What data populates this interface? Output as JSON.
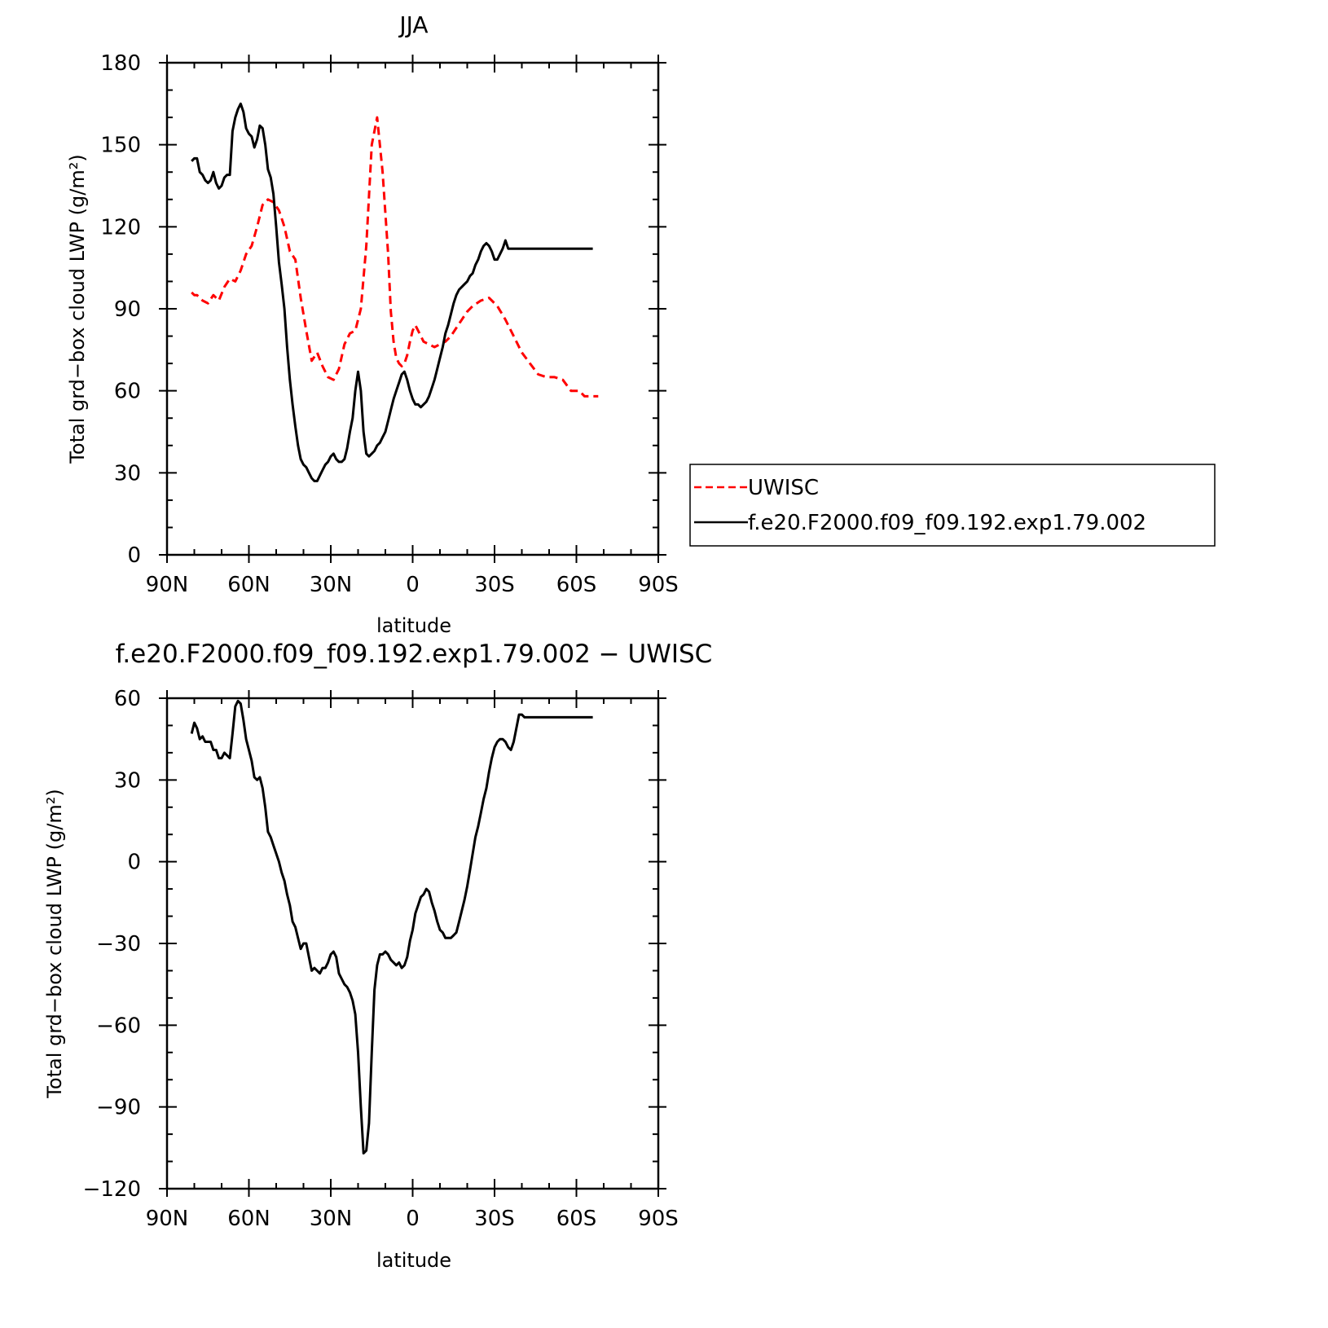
{
  "figure": {
    "top_title": "JJA",
    "bottom_title": "f.e20.F2000.f09_f09.192.exp1.79.002  −  UWISC"
  },
  "legend": {
    "obs_label": "UWISC",
    "model_label": "f.e20.F2000.f09_f09.192.exp1.79.002"
  },
  "chart_data": [
    {
      "type": "line",
      "title": "JJA",
      "xlabel": "latitude",
      "ylabel": "Total grd−box cloud LWP (g/m²)",
      "xlim": [
        90,
        -90
      ],
      "ylim": [
        0,
        180
      ],
      "x_ticks": [
        90,
        60,
        30,
        0,
        -30,
        -60,
        -90
      ],
      "x_tick_labels": [
        "90N",
        "60N",
        "30N",
        "0",
        "30S",
        "60S",
        "90S"
      ],
      "y_ticks": [
        0,
        30,
        60,
        90,
        120,
        150,
        180
      ],
      "y_tick_labels": [
        "0",
        "30",
        "60",
        "90",
        "120",
        "150",
        "180"
      ],
      "legend_position": "right",
      "series": [
        {
          "name": "UWISC",
          "color": "#ff0000",
          "dash": "dashed",
          "x": [
            81,
            80,
            79,
            77,
            75,
            73,
            71,
            69,
            67,
            65,
            63,
            61,
            59,
            57,
            55,
            53,
            51,
            49,
            47,
            45,
            43,
            41,
            39,
            37,
            35,
            33,
            31,
            29,
            27,
            25,
            23,
            21,
            19,
            17,
            15,
            13,
            11,
            9,
            8,
            7,
            6,
            5,
            4,
            3,
            2,
            1,
            0,
            -1,
            -2,
            -4,
            -6,
            -8,
            -10,
            -12,
            -14,
            -16,
            -18,
            -20,
            -22,
            -25,
            -28,
            -31,
            -34,
            -37,
            -40,
            -43,
            -46,
            -49,
            -52,
            -55,
            -58,
            -61,
            -63,
            -65,
            -66,
            -67,
            -68
          ],
          "values": [
            96,
            95,
            95,
            93,
            92,
            95,
            93,
            98,
            101,
            100,
            104,
            110,
            113,
            120,
            128,
            130,
            129,
            126,
            120,
            111,
            108,
            94,
            82,
            71,
            74,
            69,
            65,
            64,
            68,
            77,
            81,
            82,
            90,
            113,
            150,
            160,
            140,
            110,
            89,
            78,
            72,
            70,
            69,
            70,
            73,
            78,
            82,
            84,
            82,
            78,
            77,
            76,
            77,
            78,
            80,
            83,
            86,
            89,
            91,
            93,
            94,
            91,
            86,
            80,
            74,
            70,
            66,
            65,
            65,
            64,
            60,
            60,
            58,
            58,
            58,
            58,
            58
          ]
        },
        {
          "name": "f.e20.F2000.f09_f09.192.exp1.79.002",
          "color": "#000000",
          "dash": "solid",
          "x": [
            81,
            80,
            79,
            78,
            77,
            76,
            75,
            74,
            73,
            72,
            71,
            70,
            69,
            68,
            67,
            66,
            65,
            64,
            63,
            62,
            61,
            60,
            59,
            58,
            57,
            56,
            55,
            54,
            53,
            52,
            51,
            50,
            49,
            48,
            47,
            46,
            45,
            44,
            43,
            42,
            41,
            40,
            39,
            38,
            37,
            36,
            35,
            34,
            33,
            32,
            31,
            30,
            29,
            28,
            27,
            26,
            25,
            24,
            23,
            22,
            21,
            20,
            19,
            18,
            17,
            16,
            15,
            14,
            13,
            12,
            11,
            10,
            9,
            8,
            7,
            6,
            5,
            4,
            3,
            2,
            1,
            0,
            -1,
            -2,
            -3,
            -4,
            -5,
            -6,
            -7,
            -8,
            -9,
            -10,
            -11,
            -12,
            -13,
            -14,
            -15,
            -16,
            -17,
            -18,
            -19,
            -20,
            -21,
            -22,
            -23,
            -24,
            -25,
            -26,
            -27,
            -28,
            -29,
            -30,
            -31,
            -32,
            -33,
            -34,
            -35,
            -36,
            -37,
            -38,
            -39,
            -40,
            -41,
            -42,
            -43,
            -44,
            -45,
            -46,
            -47,
            -48,
            -49,
            -50,
            -51,
            -52,
            -53,
            -54,
            -55,
            -56,
            -57,
            -58,
            -59,
            -60,
            -61,
            -62,
            -63,
            -64,
            -65,
            -66
          ],
          "values": [
            144,
            145,
            145,
            140,
            139,
            137,
            136,
            137,
            140,
            136,
            134,
            135,
            138,
            139,
            139,
            155,
            160,
            163,
            165,
            162,
            156,
            154,
            153,
            149,
            152,
            157,
            156,
            150,
            141,
            138,
            132,
            120,
            107,
            99,
            90,
            76,
            64,
            55,
            47,
            40,
            35,
            33,
            32,
            30,
            28,
            27,
            27,
            29,
            31,
            33,
            34,
            36,
            37,
            35,
            34,
            34,
            35,
            39,
            45,
            50,
            60,
            67,
            60,
            45,
            37,
            36,
            37,
            38,
            40,
            41,
            43,
            45,
            49,
            53,
            57,
            60,
            63,
            66,
            67,
            64,
            60,
            57,
            55,
            55,
            54,
            55,
            56,
            58,
            61,
            64,
            68,
            72,
            76,
            81,
            84,
            88,
            92,
            95,
            97,
            98,
            99,
            100,
            102,
            103,
            106,
            108,
            111,
            113,
            114,
            113,
            111,
            108,
            108,
            110,
            112,
            115,
            112,
            112,
            112,
            112,
            112,
            112,
            112,
            112,
            112,
            112,
            112,
            112,
            112,
            112,
            112,
            112,
            112,
            112,
            112,
            112,
            112,
            112,
            112,
            112,
            112,
            112,
            112,
            112,
            112,
            112,
            112,
            112
          ]
        }
      ]
    },
    {
      "type": "line",
      "title": "f.e20.F2000.f09_f09.192.exp1.79.002  −  UWISC",
      "xlabel": "latitude",
      "ylabel": "Total grd−box cloud LWP (g/m²)",
      "xlim": [
        90,
        -90
      ],
      "ylim": [
        -120,
        60
      ],
      "x_ticks": [
        90,
        60,
        30,
        0,
        -30,
        -60,
        -90
      ],
      "x_tick_labels": [
        "90N",
        "60N",
        "30N",
        "0",
        "30S",
        "60S",
        "90S"
      ],
      "y_ticks": [
        -120,
        -90,
        -60,
        -30,
        0,
        30,
        60
      ],
      "y_tick_labels": [
        "−120",
        "−90",
        "−60",
        "−30",
        "0",
        "30",
        "60"
      ],
      "series": [
        {
          "color": "#000000",
          "dash": "solid",
          "x": [
            81,
            80,
            79,
            78,
            77,
            76,
            75,
            74,
            73,
            72,
            71,
            70,
            69,
            68,
            67,
            66,
            65,
            64,
            63,
            62,
            61,
            60,
            59,
            58,
            57,
            56,
            55,
            54,
            53,
            52,
            51,
            50,
            49,
            48,
            47,
            46,
            45,
            44,
            43,
            42,
            41,
            40,
            39,
            38,
            37,
            36,
            35,
            34,
            33,
            32,
            31,
            30,
            29,
            28,
            27,
            26,
            25,
            24,
            23,
            22,
            21,
            20,
            19,
            18,
            17,
            16,
            15,
            14,
            13,
            12,
            11,
            10,
            9,
            8,
            7,
            6,
            5,
            4,
            3,
            2,
            1,
            0,
            -1,
            -2,
            -3,
            -4,
            -5,
            -6,
            -7,
            -8,
            -9,
            -10,
            -11,
            -12,
            -13,
            -14,
            -15,
            -16,
            -17,
            -18,
            -19,
            -20,
            -21,
            -22,
            -23,
            -24,
            -25,
            -26,
            -27,
            -28,
            -29,
            -30,
            -31,
            -32,
            -33,
            -34,
            -35,
            -36,
            -37,
            -38,
            -39,
            -40,
            -41,
            -42,
            -43,
            -44,
            -45,
            -46,
            -47,
            -48,
            -49,
            -50,
            -51,
            -52,
            -53,
            -54,
            -55,
            -56,
            -57,
            -58,
            -59,
            -60,
            -61,
            -62,
            -63,
            -64,
            -65,
            -66
          ],
          "values": [
            47,
            51,
            49,
            45,
            46,
            44,
            44,
            44,
            41,
            41,
            38,
            38,
            40,
            39,
            38,
            47,
            57,
            59,
            58,
            52,
            45,
            41,
            37,
            31,
            30,
            31,
            27,
            20,
            11,
            9,
            6,
            3,
            0,
            -4,
            -7,
            -12,
            -16,
            -22,
            -24,
            -28,
            -32,
            -30,
            -30,
            -35,
            -40,
            -39,
            -40,
            -41,
            -39,
            -39,
            -37,
            -34,
            -33,
            -35,
            -41,
            -43,
            -45,
            -46,
            -48,
            -51,
            -56,
            -70,
            -90,
            -107,
            -106,
            -96,
            -70,
            -47,
            -38,
            -34,
            -34,
            -33,
            -34,
            -36,
            -37,
            -38,
            -37,
            -39,
            -38,
            -35,
            -29,
            -25,
            -19,
            -16,
            -13,
            -12,
            -10,
            -11,
            -15,
            -18,
            -22,
            -25,
            -26,
            -28,
            -28,
            -28,
            -27,
            -26,
            -22,
            -18,
            -14,
            -9,
            -3,
            3,
            9,
            13,
            18,
            23,
            27,
            33,
            38,
            42,
            44,
            45,
            45,
            44,
            42,
            41,
            44,
            49,
            54,
            54,
            53,
            53,
            53,
            53,
            53,
            53,
            53,
            53,
            53,
            53,
            53,
            53,
            53,
            53,
            53,
            53,
            53,
            53,
            53,
            53,
            53,
            53,
            53,
            53,
            53,
            53
          ]
        }
      ]
    }
  ]
}
